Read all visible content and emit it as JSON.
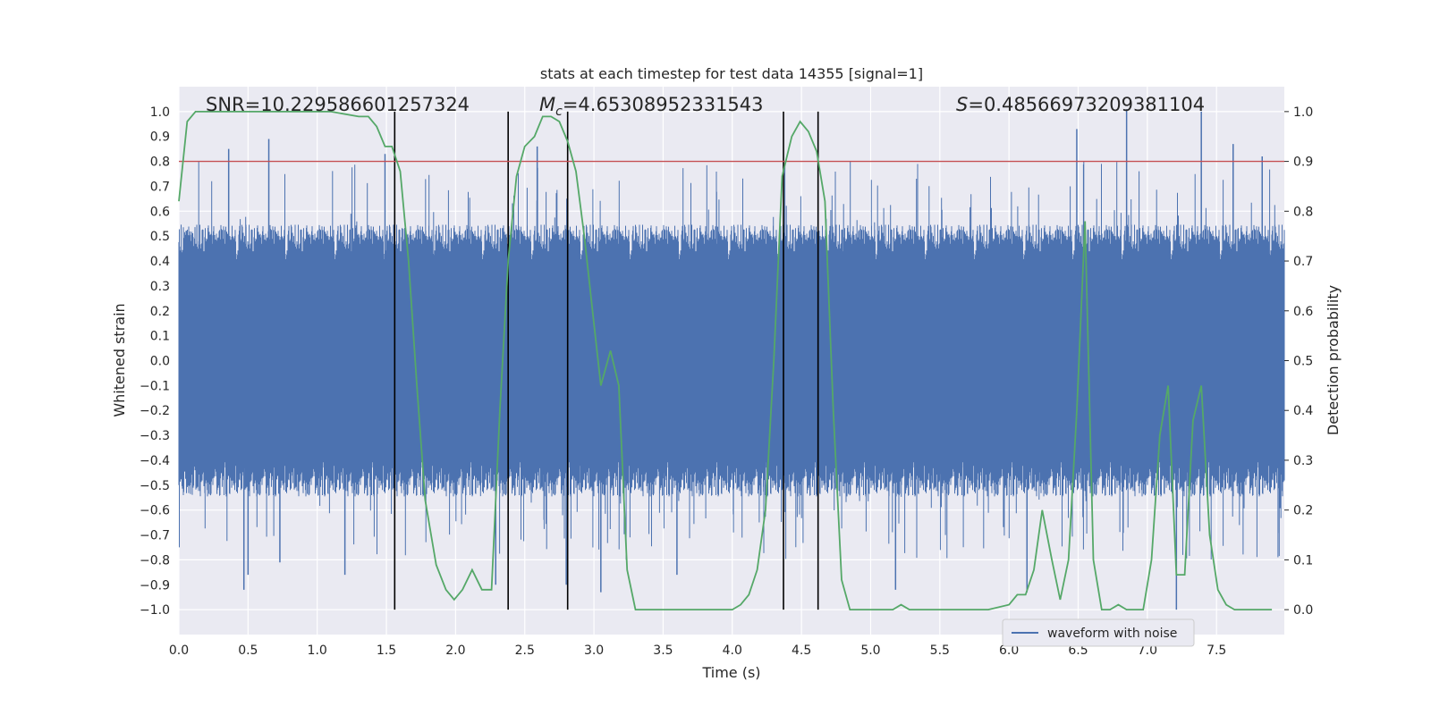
{
  "chart_data": {
    "type": "line",
    "title": "stats at each timestep for test data 14355 [signal=1]",
    "xlabel": "Time (s)",
    "ylabel": "Whitened strain",
    "ylabel_right": "Detection probability",
    "xlim": [
      0.0,
      7.99
    ],
    "ylim": [
      -1.1,
      1.1
    ],
    "ylim_right": [
      -0.05,
      1.05
    ],
    "xticks": [
      0.0,
      0.5,
      1.0,
      1.5,
      2.0,
      2.5,
      3.0,
      3.5,
      4.0,
      4.5,
      5.0,
      5.5,
      6.0,
      6.5,
      7.0,
      7.5
    ],
    "xtick_labels": [
      "0.0",
      "0.5",
      "1.0",
      "1.5",
      "2.0",
      "2.5",
      "3.0",
      "3.5",
      "4.0",
      "4.5",
      "5.0",
      "5.5",
      "6.0",
      "6.5",
      "7.0",
      "7.5"
    ],
    "yticks": [
      -1.0,
      -0.9,
      -0.8,
      -0.7,
      -0.6,
      -0.5,
      -0.4,
      -0.3,
      -0.2,
      -0.1,
      0.0,
      0.1,
      0.2,
      0.3,
      0.4,
      0.5,
      0.6,
      0.7,
      0.8,
      0.9,
      1.0
    ],
    "ytick_labels": [
      "−1.0",
      "−0.9",
      "−0.8",
      "−0.7",
      "−0.6",
      "−0.5",
      "−0.4",
      "−0.3",
      "−0.2",
      "−0.1",
      "0.0",
      "0.1",
      "0.2",
      "0.3",
      "0.4",
      "0.5",
      "0.6",
      "0.7",
      "0.8",
      "0.9",
      "1.0"
    ],
    "yticks_right": [
      0.0,
      0.1,
      0.2,
      0.3,
      0.4,
      0.5,
      0.6,
      0.7,
      0.8,
      0.9,
      1.0
    ],
    "ytick_labels_right": [
      "0.0",
      "0.1",
      "0.2",
      "0.3",
      "0.4",
      "0.5",
      "0.6",
      "0.7",
      "0.8",
      "0.9",
      "1.0"
    ],
    "annotations": {
      "snr": "SNR=10.229586601257324",
      "mc_symbol": "M",
      "mc_subscript": "c",
      "mc_value": "=4.65308952331543",
      "s_symbol": "S",
      "s_value": "=0.48566973209381104"
    },
    "threshold": {
      "value": 0.9,
      "axis": "right",
      "color": "#c44e52"
    },
    "vlines": [
      1.56,
      2.38,
      2.81,
      4.37,
      4.62
    ],
    "vline_range": [
      -1.0,
      1.0
    ],
    "waveform": {
      "name": "waveform with noise",
      "color": "#4c72b0",
      "typical_pos": 0.42,
      "typical_neg": -0.42,
      "spikes_pos": [
        {
          "x": 0.36,
          "y": 0.85
        },
        {
          "x": 0.65,
          "y": 0.89
        },
        {
          "x": 1.49,
          "y": 0.83
        },
        {
          "x": 2.59,
          "y": 0.86
        },
        {
          "x": 6.49,
          "y": 0.93
        },
        {
          "x": 6.85,
          "y": 1.01
        },
        {
          "x": 7.39,
          "y": 1.0
        },
        {
          "x": 7.62,
          "y": 0.87
        },
        {
          "x": 7.83,
          "y": 0.82
        }
      ],
      "spikes_neg": [
        {
          "x": 0.47,
          "y": -0.92
        },
        {
          "x": 0.5,
          "y": -0.86
        },
        {
          "x": 0.73,
          "y": -0.81
        },
        {
          "x": 1.2,
          "y": -0.86
        },
        {
          "x": 2.29,
          "y": -0.9
        },
        {
          "x": 2.8,
          "y": -0.9
        },
        {
          "x": 3.05,
          "y": -0.93
        },
        {
          "x": 3.6,
          "y": -0.86
        },
        {
          "x": 5.18,
          "y": -0.92
        },
        {
          "x": 6.13,
          "y": -0.93
        },
        {
          "x": 7.21,
          "y": -1.0
        }
      ]
    },
    "probability": {
      "name": "detection probability",
      "color": "#55a868",
      "x": [
        0.0,
        0.06,
        0.12,
        0.25,
        0.5,
        0.8,
        1.1,
        1.3,
        1.37,
        1.43,
        1.49,
        1.54,
        1.6,
        1.66,
        1.72,
        1.78,
        1.86,
        1.93,
        1.99,
        2.05,
        2.12,
        2.19,
        2.26,
        2.32,
        2.38,
        2.44,
        2.5,
        2.57,
        2.63,
        2.69,
        2.75,
        2.81,
        2.87,
        2.93,
        2.99,
        3.05,
        3.12,
        3.18,
        3.24,
        3.3,
        3.36,
        3.5,
        3.8,
        4.0,
        4.06,
        4.12,
        4.18,
        4.24,
        4.3,
        4.36,
        4.43,
        4.49,
        4.55,
        4.61,
        4.67,
        4.73,
        4.79,
        4.85,
        5.0,
        5.16,
        5.22,
        5.28,
        5.4,
        5.6,
        5.85,
        6.0,
        6.06,
        6.12,
        6.18,
        6.24,
        6.31,
        6.37,
        6.43,
        6.49,
        6.55,
        6.61,
        6.67,
        6.73,
        6.79,
        6.85,
        6.91,
        6.97,
        7.03,
        7.09,
        7.15,
        7.21,
        7.27,
        7.33,
        7.39,
        7.45,
        7.51,
        7.57,
        7.63,
        7.7,
        7.8,
        7.9
      ],
      "y": [
        0.82,
        0.98,
        1.0,
        1.0,
        1.0,
        1.0,
        1.0,
        0.99,
        0.99,
        0.97,
        0.93,
        0.93,
        0.88,
        0.7,
        0.45,
        0.22,
        0.09,
        0.04,
        0.02,
        0.04,
        0.08,
        0.04,
        0.04,
        0.4,
        0.7,
        0.87,
        0.93,
        0.95,
        0.99,
        0.99,
        0.98,
        0.94,
        0.88,
        0.75,
        0.6,
        0.45,
        0.52,
        0.45,
        0.08,
        0.0,
        0.0,
        0.0,
        0.0,
        0.0,
        0.01,
        0.03,
        0.08,
        0.2,
        0.5,
        0.87,
        0.95,
        0.98,
        0.96,
        0.92,
        0.82,
        0.4,
        0.06,
        0.0,
        0.0,
        0.0,
        0.01,
        0.0,
        0.0,
        0.0,
        0.0,
        0.01,
        0.03,
        0.03,
        0.08,
        0.2,
        0.1,
        0.02,
        0.1,
        0.4,
        0.78,
        0.1,
        0.0,
        0.0,
        0.01,
        0.0,
        0.0,
        0.0,
        0.1,
        0.35,
        0.45,
        0.07,
        0.07,
        0.38,
        0.45,
        0.15,
        0.04,
        0.01,
        0.0,
        0.0,
        0.0,
        0.0
      ]
    },
    "legend": {
      "entries": [
        "waveform with noise"
      ],
      "position": "lower-right"
    },
    "style": {
      "background": "#eaeaf2",
      "grid": "#ffffff",
      "grid_on": true
    }
  }
}
